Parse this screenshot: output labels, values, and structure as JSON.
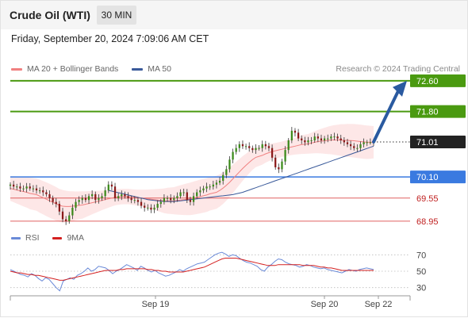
{
  "header": {
    "title": "Crude Oil (WTI)",
    "interval": "30 MIN",
    "timestamp": "Friday, September 20, 2024 7:09:06 AM CET"
  },
  "legend": {
    "ma20_label": "MA 20 + Bollinger Bands",
    "ma50_label": "MA 50",
    "ma20_color": "#f08080",
    "ma50_color": "#3a5a9a",
    "credit": "Research © 2024 Trading Central"
  },
  "levels": {
    "target2": "72.60",
    "target1": "71.80",
    "pivot": "71.01",
    "support1": "70.10",
    "support2": "69.55",
    "support3": "68.95"
  },
  "rsi_legend": {
    "rsi_label": "RSI",
    "ma_label": "9MA",
    "rsi_color": "#6a8ad8",
    "ma_color": "#d42020"
  },
  "colors": {
    "resistance": "#4a9a10",
    "support_main": "#3a7ae0",
    "support_minor": "#e06060",
    "pivot_bg": "#222222",
    "bull_candle": "#3a8a1a",
    "bear_candle": "#8a1a1a",
    "band_fill": "#fde4e4",
    "arrow": "#2a5aa0"
  },
  "chart_data": {
    "type": "candlestick",
    "ylim": [
      68.7,
      72.72
    ],
    "y_levels": [
      72.6,
      71.8,
      71.01,
      70.1,
      69.55,
      68.95
    ],
    "x_ticks": [
      "Sep 19",
      "Sep 20",
      "Sep 22"
    ],
    "projection": {
      "from": 71.01,
      "to": 72.6
    },
    "price": [
      69.9,
      69.85,
      69.85,
      69.8,
      69.8,
      69.85,
      69.8,
      69.8,
      69.75,
      69.75,
      69.7,
      69.65,
      69.55,
      69.45,
      69.4,
      69.2,
      69.0,
      68.95,
      69.1,
      69.3,
      69.45,
      69.5,
      69.55,
      69.5,
      69.6,
      69.65,
      69.5,
      69.55,
      69.6,
      69.75,
      69.9,
      69.85,
      69.55,
      69.6,
      69.65,
      69.6,
      69.55,
      69.5,
      69.5,
      69.45,
      69.35,
      69.3,
      69.3,
      69.25,
      69.3,
      69.4,
      69.45,
      69.55,
      69.55,
      69.5,
      69.55,
      69.6,
      69.7,
      69.7,
      69.5,
      69.45,
      69.6,
      69.7,
      69.75,
      69.8,
      69.85,
      69.85,
      69.9,
      69.95,
      70.0,
      70.15,
      70.3,
      70.55,
      70.75,
      70.85,
      70.95,
      70.9,
      70.9,
      70.85,
      70.8,
      70.85,
      70.85,
      70.95,
      70.9,
      70.85,
      70.6,
      70.35,
      70.3,
      70.5,
      70.8,
      71.05,
      71.3,
      71.25,
      71.1,
      71.05,
      71.0,
      71.05,
      71.05,
      71.15,
      71.1,
      71.05,
      71.1,
      71.1,
      71.15,
      71.15,
      71.1,
      71.05,
      71.0,
      70.95,
      70.9,
      70.85,
      70.85,
      70.95,
      71.0,
      71.0,
      71.0,
      71.01
    ],
    "ma20": [
      69.8,
      69.78,
      69.76,
      69.74,
      69.72,
      69.7,
      69.67,
      69.64,
      69.6,
      69.56,
      69.52,
      69.48,
      69.44,
      69.4,
      69.36,
      69.34,
      69.33,
      69.33,
      69.34,
      69.35,
      69.37,
      69.39,
      69.41,
      69.43,
      69.45,
      69.47,
      69.49,
      69.51,
      69.53,
      69.55,
      69.57,
      69.58,
      69.59,
      69.59,
      69.58,
      69.57,
      69.56,
      69.55,
      69.54,
      69.53,
      69.52,
      69.51,
      69.5,
      69.49,
      69.48,
      69.48,
      69.48,
      69.49,
      69.5,
      69.51,
      69.52,
      69.53,
      69.55,
      69.57,
      69.59,
      69.61,
      69.63,
      69.66,
      69.7,
      69.75,
      69.81,
      69.88,
      69.96,
      70.05,
      70.14,
      70.23,
      70.32,
      70.4,
      70.48,
      70.55,
      70.61,
      70.66,
      70.7,
      70.73,
      70.76,
      70.78,
      70.8,
      70.82,
      70.84,
      70.86,
      70.88,
      70.9,
      70.92,
      70.94,
      70.96,
      70.98,
      71.0,
      71.02,
      71.03,
      71.04,
      71.05,
      71.06,
      71.06,
      71.06,
      71.06,
      71.05,
      71.05,
      71.04,
      71.03,
      71.02,
      71.01,
      71.0,
      71.0,
      71.0
    ],
    "ma50": [
      69.75,
      69.73,
      69.71,
      69.69,
      69.67,
      69.65,
      69.63,
      69.61,
      69.59,
      69.57,
      69.55,
      69.53,
      69.51,
      69.5,
      69.49,
      69.48,
      69.47,
      69.46,
      69.46,
      69.46,
      69.46,
      69.47,
      69.48,
      69.49,
      69.5,
      69.51,
      69.52,
      69.53,
      69.54,
      69.55,
      69.56,
      69.57,
      69.58,
      69.59,
      69.6,
      69.61,
      69.62,
      69.63,
      69.64,
      69.66,
      69.68,
      69.7,
      69.73,
      69.76,
      69.79,
      69.82,
      69.85,
      69.88,
      69.91,
      69.94,
      69.97,
      70.0,
      70.03,
      70.06,
      70.09,
      70.12,
      70.15,
      70.18,
      70.21,
      70.24,
      70.27,
      70.3,
      70.33,
      70.36,
      70.39,
      70.42,
      70.45,
      70.48,
      70.51,
      70.54,
      70.57,
      70.6,
      70.63,
      70.66,
      70.69,
      70.72,
      70.75,
      70.78,
      70.81,
      70.84,
      70.87,
      70.9
    ],
    "rsi": {
      "ylim": [
        20,
        80
      ],
      "ticks": [
        70,
        50,
        30
      ],
      "rsi": [
        52,
        50,
        48,
        46,
        45,
        43,
        47,
        45,
        41,
        38,
        42,
        40,
        35,
        30,
        26,
        38,
        40,
        42,
        40,
        45,
        47,
        50,
        54,
        50,
        52,
        56,
        55,
        54,
        51,
        47,
        50,
        52,
        55,
        58,
        56,
        54,
        51,
        56,
        54,
        51,
        49,
        51,
        48,
        46,
        44,
        45,
        47,
        49,
        52,
        50,
        53,
        55,
        57,
        59,
        60,
        61,
        64,
        67,
        70,
        72,
        73,
        71,
        68,
        70,
        69,
        66,
        63,
        61,
        60,
        58,
        56,
        52,
        50,
        55,
        58,
        62,
        65,
        64,
        61,
        59,
        58,
        57,
        55,
        56,
        58,
        57,
        55,
        54,
        53,
        54,
        52,
        51,
        50,
        49,
        48,
        50,
        52,
        51,
        50,
        52,
        53,
        54,
        53,
        52
      ],
      "ma": [
        50,
        49,
        48,
        48,
        47,
        46,
        46,
        45,
        45,
        44,
        43,
        42,
        41,
        40,
        39,
        39,
        40,
        41,
        42,
        43,
        44,
        45,
        46,
        47,
        48,
        49,
        50,
        51,
        51,
        51,
        51,
        52,
        52,
        53,
        53,
        53,
        53,
        53,
        53,
        52,
        52,
        51,
        51,
        50,
        50,
        49,
        49,
        49,
        49,
        49,
        50,
        51,
        52,
        53,
        54,
        55,
        57,
        59,
        61,
        63,
        65,
        66,
        66,
        66,
        66,
        65,
        64,
        63,
        62,
        61,
        60,
        59,
        58,
        57,
        57,
        57,
        58,
        58,
        58,
        58,
        58,
        58,
        58,
        57,
        57,
        57,
        57,
        56,
        55,
        55,
        54,
        54,
        53,
        52,
        51,
        51,
        51,
        51,
        51,
        51,
        51,
        51,
        51,
        51
      ]
    }
  }
}
